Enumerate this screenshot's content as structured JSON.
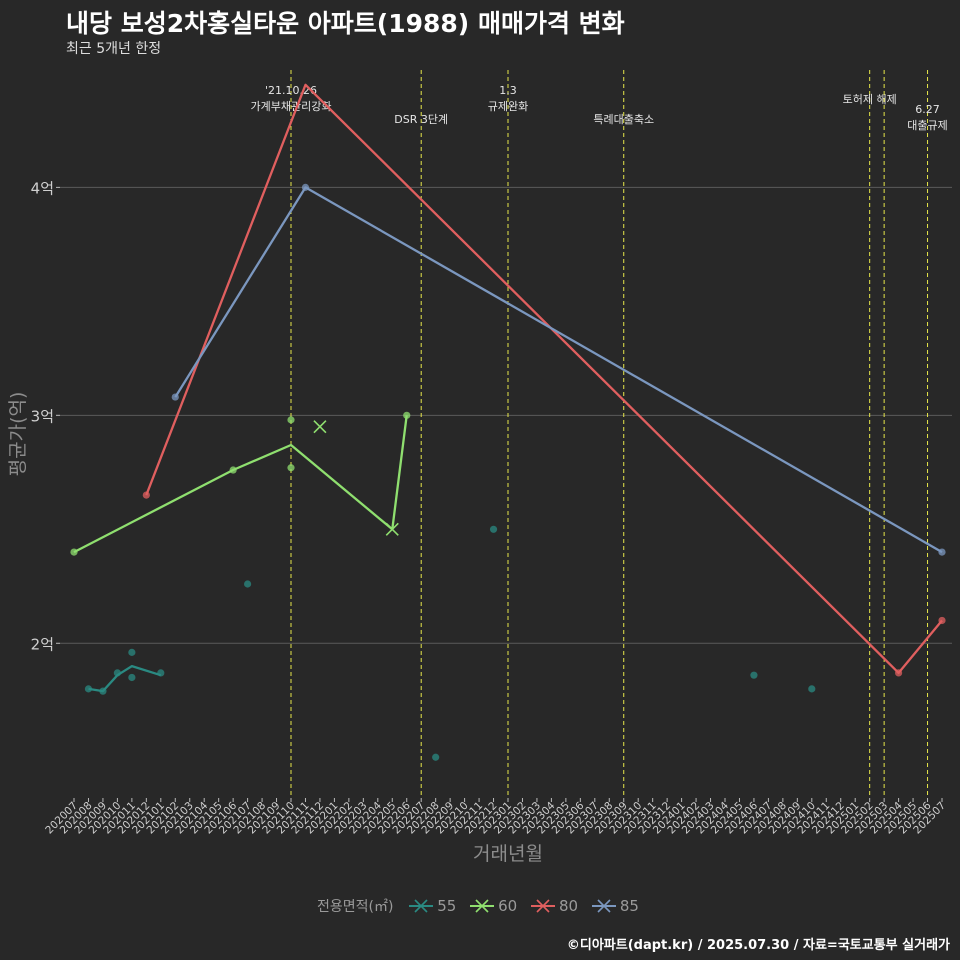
{
  "title": "내당 보성2차홍실타운 아파트(1988) 매매가격 변화",
  "subtitle": "최근 5개년 한정",
  "caption": "©디아파트(dapt.kr) / 2025.07.30 / 자료=국토교통부 실거래가",
  "chart_data": {
    "type": "line",
    "xlabel": "거래년월",
    "ylabel": "평균가(억)",
    "x_categories": [
      "202007",
      "202008",
      "202009",
      "202010",
      "202011",
      "202012",
      "202101",
      "202102",
      "202103",
      "202104",
      "202105",
      "202106",
      "202107",
      "202108",
      "202109",
      "202110",
      "202111",
      "202112",
      "202201",
      "202202",
      "202203",
      "202204",
      "202205",
      "202206",
      "202207",
      "202208",
      "202209",
      "202210",
      "202211",
      "202212",
      "202301",
      "202302",
      "202303",
      "202304",
      "202305",
      "202306",
      "202307",
      "202308",
      "202309",
      "202310",
      "202311",
      "202312",
      "202401",
      "202402",
      "202403",
      "202404",
      "202405",
      "202406",
      "202407",
      "202408",
      "202409",
      "202410",
      "202411",
      "202412",
      "202501",
      "202502",
      "202503",
      "202504",
      "202505",
      "202506",
      "202507"
    ],
    "ylim": [
      1.33,
      4.55
    ],
    "y_ticks": [
      {
        "value": 2,
        "label": "2억"
      },
      {
        "value": 3,
        "label": "3억"
      },
      {
        "value": 4,
        "label": "4억"
      }
    ],
    "legend_title": "전용면적(㎡)",
    "legend_position": "bottom",
    "grid": "horizontal",
    "series": [
      {
        "name": "55",
        "color": "#2a8a82",
        "line": [
          [
            "202008",
            1.8
          ],
          [
            "202009",
            1.79
          ],
          [
            "202010",
            1.86
          ],
          [
            "202011",
            1.9
          ],
          [
            "202101",
            1.86
          ]
        ],
        "points": [
          [
            "202008",
            1.8
          ],
          [
            "202009",
            1.79
          ],
          [
            "202010",
            1.87
          ],
          [
            "202011",
            1.96
          ],
          [
            "202011",
            1.85
          ],
          [
            "202101",
            1.87
          ],
          [
            "202107",
            2.26
          ],
          [
            "202208",
            1.5
          ],
          [
            "202212",
            2.5
          ],
          [
            "202406",
            1.86
          ],
          [
            "202410",
            1.8
          ]
        ],
        "cross": []
      },
      {
        "name": "60",
        "color": "#8fdf6f",
        "line": [
          [
            "202007",
            2.4
          ],
          [
            "202106",
            2.76
          ],
          [
            "202110",
            2.87
          ],
          [
            "202205",
            2.5
          ],
          [
            "202206",
            3.0
          ]
        ],
        "points": [
          [
            "202007",
            2.4
          ],
          [
            "202106",
            2.76
          ],
          [
            "202110",
            2.98
          ],
          [
            "202110",
            2.77
          ],
          [
            "202206",
            3.0
          ]
        ],
        "cross": [
          [
            "202112",
            2.95
          ],
          [
            "202205",
            2.5
          ]
        ]
      },
      {
        "name": "80",
        "color": "#e05f5f",
        "line": [
          [
            "202012",
            2.65
          ],
          [
            "202111",
            4.45
          ],
          [
            "202504",
            1.87
          ],
          [
            "202507",
            2.1
          ]
        ],
        "points": [
          [
            "202012",
            2.65
          ],
          [
            "202504",
            1.87
          ],
          [
            "202507",
            2.1
          ]
        ],
        "cross": []
      },
      {
        "name": "85",
        "color": "#7b97bf",
        "line": [
          [
            "202102",
            3.08
          ],
          [
            "202111",
            4.0
          ],
          [
            "202507",
            2.4
          ]
        ],
        "points": [
          [
            "202102",
            3.08
          ],
          [
            "202111",
            4.0
          ],
          [
            "202507",
            2.4
          ]
        ],
        "cross": []
      }
    ],
    "events": [
      {
        "x": "202110",
        "lines": [
          "'21.10.26",
          "가계부채관리강화"
        ]
      },
      {
        "x": "202207",
        "lines": [
          "DSR 3단계"
        ]
      },
      {
        "x": "202301",
        "lines": [
          "1.3",
          "규제완화"
        ]
      },
      {
        "x": "202309",
        "lines": [
          "특례대출축소"
        ]
      },
      {
        "x": "202502",
        "lines": [
          "토허제 해제"
        ]
      },
      {
        "x": "202503",
        "lines": []
      },
      {
        "x": "202506",
        "lines": [
          "6.27",
          "대출규제"
        ]
      }
    ]
  }
}
